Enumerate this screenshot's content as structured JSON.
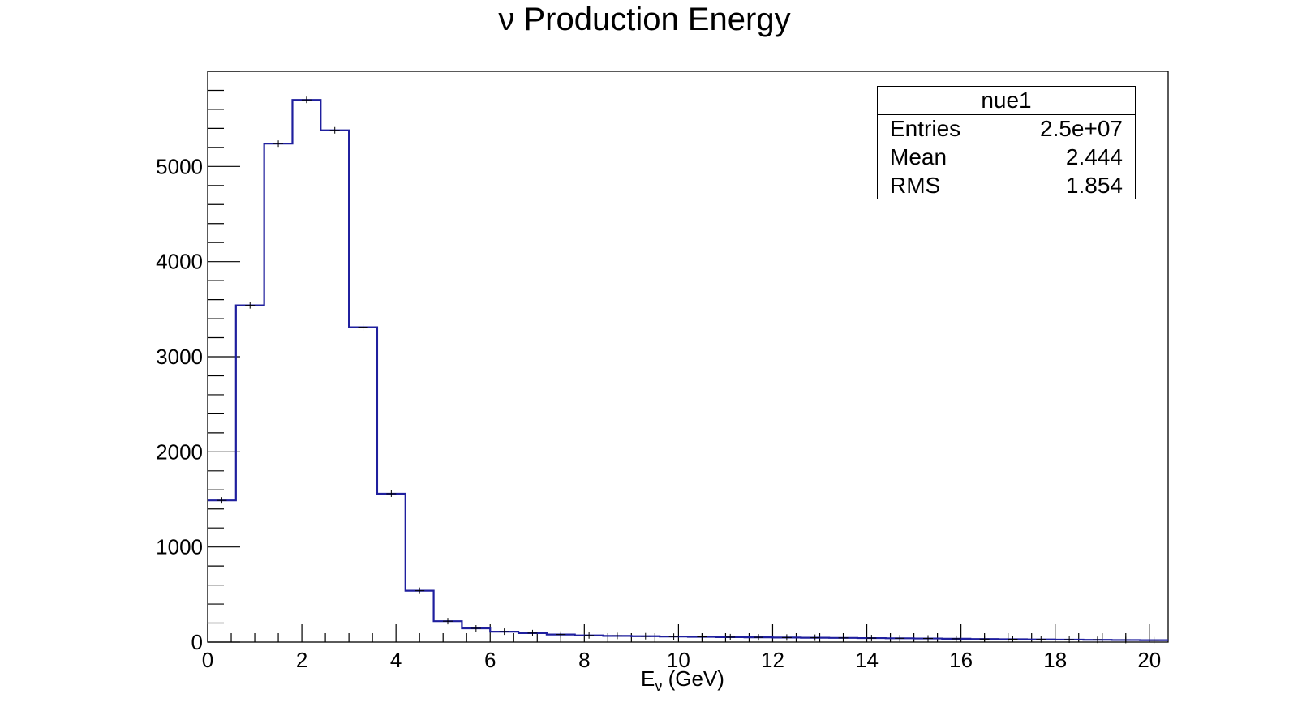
{
  "chart_data": {
    "type": "bar",
    "title": "ν Production Energy",
    "xlabel": {
      "main": "E",
      "sub": "ν",
      "tail": " (GeV)"
    },
    "ylabel": "",
    "xlim": [
      0,
      20.4
    ],
    "ylim": [
      0,
      6000
    ],
    "xticks": [
      0,
      2,
      4,
      6,
      8,
      10,
      12,
      14,
      16,
      18,
      20
    ],
    "yticks": [
      0,
      1000,
      2000,
      3000,
      4000,
      5000
    ],
    "bin_width": 0.6,
    "line_color": "#1f1f9e",
    "values": [
      1490,
      3540,
      5240,
      5700,
      5380,
      3310,
      1560,
      540,
      220,
      145,
      110,
      95,
      80,
      70,
      65,
      62,
      58,
      55,
      52,
      50,
      48,
      46,
      44,
      42,
      40,
      38,
      35,
      32,
      30,
      28,
      26,
      24,
      22,
      20
    ],
    "stats": {
      "name": "nue1",
      "rows": [
        {
          "label": "Entries",
          "value": "2.5e+07"
        },
        {
          "label": "Mean",
          "value": "2.444"
        },
        {
          "label": "RMS",
          "value": "1.854"
        }
      ]
    }
  }
}
